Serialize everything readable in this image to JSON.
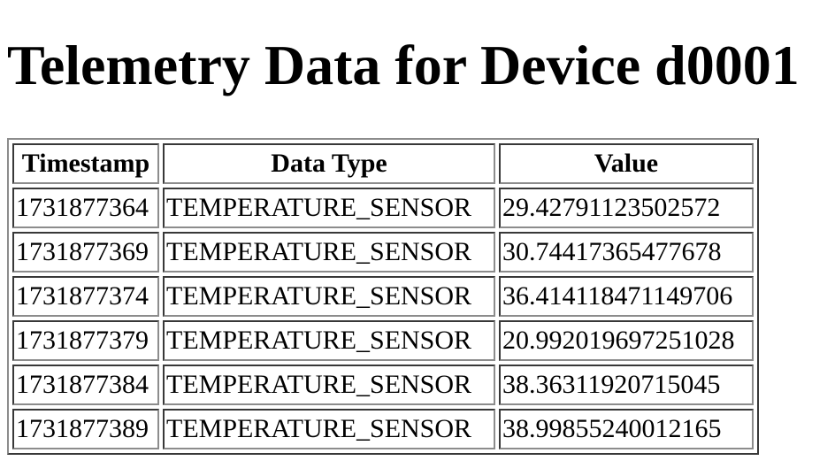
{
  "page": {
    "title": "Telemetry Data for Device d0001"
  },
  "table": {
    "headers": [
      "Timestamp",
      "Data Type",
      "Value"
    ],
    "rows": [
      [
        "1731877364",
        "TEMPERATURE_SENSOR",
        "29.42791123502572"
      ],
      [
        "1731877369",
        "TEMPERATURE_SENSOR",
        "30.74417365477678"
      ],
      [
        "1731877374",
        "TEMPERATURE_SENSOR",
        "36.414118471149706"
      ],
      [
        "1731877379",
        "TEMPERATURE_SENSOR",
        "20.992019697251028"
      ],
      [
        "1731877384",
        "TEMPERATURE_SENSOR",
        "38.36311920715045"
      ],
      [
        "1731877389",
        "TEMPERATURE_SENSOR",
        "38.99855240012165"
      ]
    ]
  }
}
